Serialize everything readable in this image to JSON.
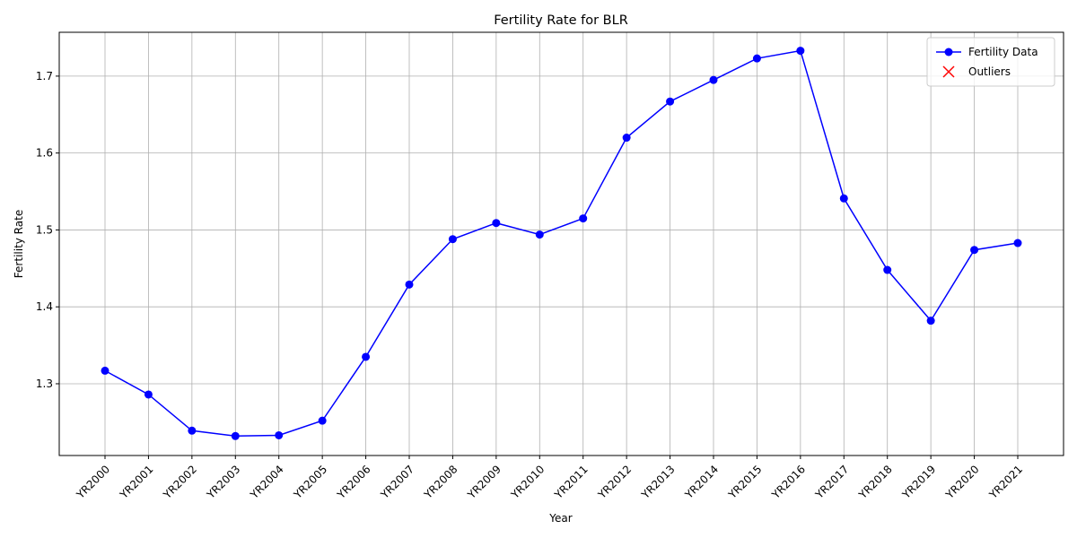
{
  "chart_data": {
    "type": "line",
    "title": "Fertility Rate for BLR",
    "x_label": "Year",
    "y_label": "Fertility Rate",
    "categories": [
      "YR2000",
      "YR2001",
      "YR2002",
      "YR2003",
      "YR2004",
      "YR2005",
      "YR2006",
      "YR2007",
      "YR2008",
      "YR2009",
      "YR2010",
      "YR2011",
      "YR2012",
      "YR2013",
      "YR2014",
      "YR2015",
      "YR2016",
      "YR2017",
      "YR2018",
      "YR2019",
      "YR2020",
      "YR2021"
    ],
    "series": [
      {
        "name": "Fertility Data",
        "color": "#0000ff",
        "marker": "o",
        "values": [
          1.317,
          1.286,
          1.239,
          1.232,
          1.233,
          1.252,
          1.335,
          1.429,
          1.488,
          1.509,
          1.494,
          1.515,
          1.62,
          1.667,
          1.695,
          1.723,
          1.733,
          1.541,
          1.448,
          1.382,
          1.474,
          1.483
        ]
      },
      {
        "name": "Outliers",
        "color": "#ff0000",
        "marker": "x",
        "values": [
          null,
          null,
          null,
          null,
          null,
          null,
          null,
          null,
          null,
          null,
          null,
          null,
          null,
          null,
          null,
          null,
          null,
          null,
          null,
          null,
          null,
          null
        ]
      }
    ],
    "ylim": [
      1.2067,
      1.757
    ],
    "yticks": [
      1.3,
      1.4,
      1.5,
      1.6,
      1.7
    ],
    "grid": true,
    "legend": "upper right"
  }
}
